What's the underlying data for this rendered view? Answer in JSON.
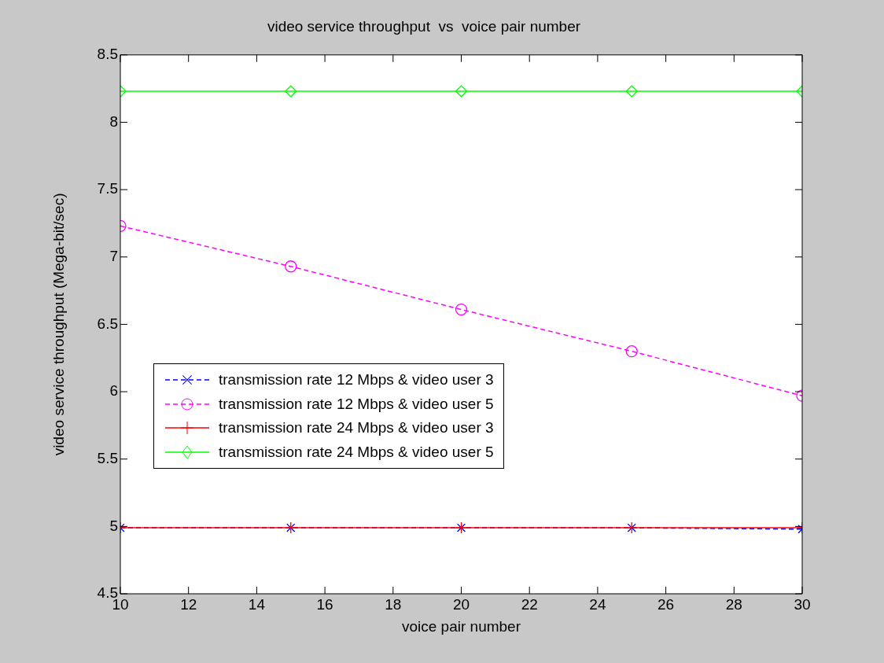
{
  "chart_data": {
    "type": "line",
    "title": "video service throughput  vs  voice pair number",
    "xlabel": "voice pair number",
    "ylabel": "video service throughput (Mega-bit/sec)",
    "x": [
      10,
      15,
      20,
      25,
      30
    ],
    "series": [
      {
        "name": "transmission rate 12 Mbps & video user 3",
        "color": "#0000ff",
        "marker": "cross",
        "line_style": "dashed",
        "values": [
          4.99,
          4.99,
          4.99,
          4.99,
          4.98
        ]
      },
      {
        "name": "transmission rate 12 Mbps & video user 5",
        "color": "#ff00ff",
        "marker": "circle",
        "line_style": "dashed",
        "values": [
          7.23,
          6.93,
          6.61,
          6.3,
          5.97
        ]
      },
      {
        "name": "transmission rate 24 Mbps & video user 3",
        "color": "#ff0000",
        "marker": "cross",
        "line_style": "solid",
        "values": [
          4.99,
          4.99,
          4.99,
          4.99,
          4.99
        ]
      },
      {
        "name": "transmission rate 24 Mbps & video user 5",
        "color": "#00ff00",
        "marker": "diamond",
        "line_style": "solid",
        "values": [
          8.23,
          8.23,
          8.23,
          8.23,
          8.23
        ]
      }
    ],
    "xlim": [
      10,
      30
    ],
    "xticks": [
      10,
      12,
      14,
      16,
      18,
      20,
      22,
      24,
      26,
      28,
      30
    ],
    "ylim": [
      4.5,
      8.5
    ],
    "yticks": [
      4.5,
      5,
      5.5,
      6,
      6.5,
      7,
      7.5,
      8,
      8.5
    ],
    "grid": false,
    "legend": "center left"
  }
}
